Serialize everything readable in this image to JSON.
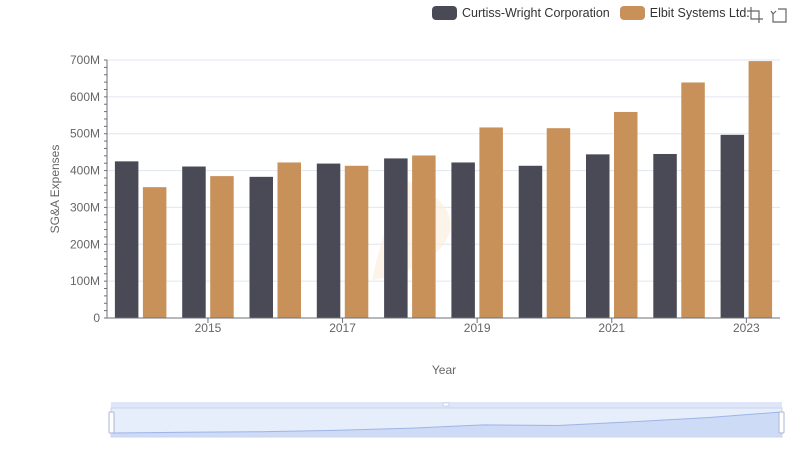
{
  "legend": [
    {
      "name": "Curtiss-Wright Corporation",
      "color": "#4a4a56"
    },
    {
      "name": "Elbit Systems Ltd.",
      "color": "#c8915a"
    }
  ],
  "toolbox": {
    "restore_icon": "restore-icon",
    "zoom_icon": "data-zoom-icon"
  },
  "chart_data": {
    "type": "bar",
    "x": [
      2014,
      2015,
      2016,
      2017,
      2018,
      2019,
      2020,
      2021,
      2022,
      2023
    ],
    "x_tick_labels": [
      "2015",
      "2017",
      "2019",
      "2021",
      "2023"
    ],
    "xlabel": "Year",
    "ylabel": "SG&A Expenses",
    "y_tick_labels": [
      "0",
      "100M",
      "200M",
      "300M",
      "400M",
      "500M",
      "600M",
      "700M"
    ],
    "ylim": [
      0,
      700000000
    ],
    "grid": true,
    "legend_position": "top-right",
    "series": [
      {
        "name": "Curtiss-Wright Corporation",
        "color": "#4a4a56",
        "values": [
          425000000,
          411000000,
          383000000,
          419000000,
          433000000,
          422000000,
          413000000,
          444000000,
          445000000,
          497000000
        ]
      },
      {
        "name": "Elbit Systems Ltd.",
        "color": "#c8915a",
        "values": [
          355000000,
          385000000,
          422000000,
          413000000,
          441000000,
          517000000,
          515000000,
          559000000,
          639000000,
          697000000
        ]
      }
    ]
  }
}
